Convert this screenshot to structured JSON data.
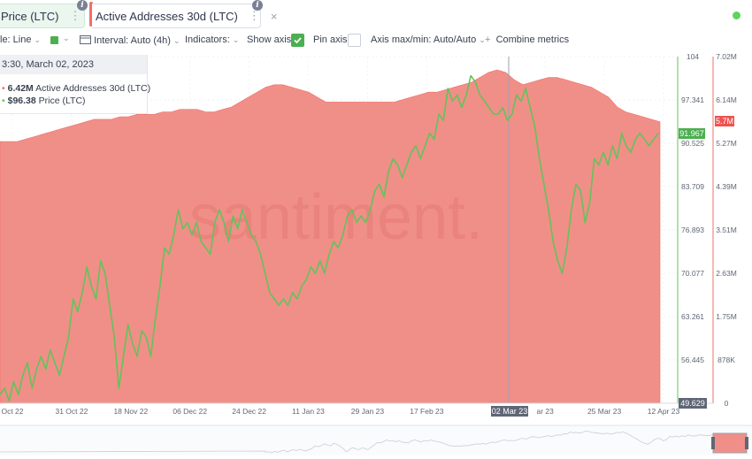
{
  "tabs": [
    {
      "label": "Price (LTC)",
      "active": true,
      "color": "#64c25b",
      "info_glyph": "i"
    },
    {
      "label": "Active Addresses 30d (LTC)",
      "active": false,
      "color": "#ef7066",
      "info_glyph": "i"
    }
  ],
  "tab_actions": {
    "more": "⋮",
    "close": "×"
  },
  "toolbar": {
    "style_label": "le: Line",
    "interval_label": "Interval: Auto (4h)",
    "indicators_label": "Indicators:",
    "show_axis_label": "Show axis",
    "show_axis_checked": true,
    "pin_axis_label": "Pin axis",
    "pin_axis_checked": false,
    "axis_label": "Axis max/min: Auto/Auto",
    "combine_label": "Combine metrics",
    "plus": "+"
  },
  "tooltip": {
    "date": "3:30, March 02, 2023",
    "rows": [
      {
        "value": "6.42M",
        "label": "Active Addresses 30d (LTC)"
      },
      {
        "value": "$96.38",
        "label": "Price (LTC)"
      }
    ]
  },
  "watermark": "santiment.",
  "colors": {
    "price": "#64c25b",
    "addresses": "#f08f88",
    "addresses_line": "#ef7066",
    "accent_check": "#4caf50"
  },
  "chart_data": {
    "type": "line",
    "x_tick_labels": [
      "Oct 22",
      "31 Oct 22",
      "18 Nov 22",
      "06 Dec 22",
      "24 Dec 22",
      "11 Jan 23",
      "29 Jan 23",
      "17 Feb 23",
      "02 Mar 23",
      "ar 23",
      "25 Mar 23",
      "12 Apr 23"
    ],
    "crosshair_label": "02 Mar 23",
    "y_left": {
      "ticks": [
        104,
        97.341,
        90.525,
        83.709,
        76.893,
        70.077,
        63.261,
        56.445,
        49.629
      ],
      "range": [
        49.629,
        104
      ],
      "current": 91.967,
      "min_label": "49.629"
    },
    "y_right": {
      "ticks": [
        "7.02M",
        "6.14M",
        "5.27M",
        "4.39M",
        "3.51M",
        "2.63M",
        "1.75M",
        "878K",
        "0"
      ],
      "range_millions": [
        0,
        7.02
      ],
      "current": "5.7M"
    },
    "series": [
      {
        "name": "Price (LTC)",
        "values": [
          51,
          52,
          50,
          53,
          51,
          54,
          56,
          52,
          55,
          57,
          55,
          58,
          56,
          54,
          57,
          60,
          66,
          64,
          67,
          71,
          68,
          66,
          72,
          70,
          65,
          60,
          52,
          57,
          62,
          59,
          57,
          61,
          60,
          57,
          63,
          68,
          74,
          73,
          76,
          80,
          77,
          78,
          76,
          78,
          75,
          74,
          73,
          78,
          80,
          78,
          75,
          79,
          77,
          80,
          78,
          76,
          75,
          73,
          70,
          67,
          66,
          65,
          66,
          65,
          67,
          66,
          68,
          69,
          71,
          70,
          72,
          70,
          73,
          75,
          74,
          76,
          79,
          80,
          78,
          79,
          78,
          80,
          83,
          84,
          82,
          86,
          88,
          87,
          85,
          87,
          89,
          90,
          88,
          90,
          92,
          91,
          95,
          94,
          99,
          97,
          98,
          96,
          98,
          101,
          100,
          98,
          97,
          96,
          95,
          95,
          96,
          94,
          95,
          98,
          97,
          99,
          96,
          93,
          88,
          84,
          80,
          75,
          72,
          70,
          74,
          80,
          84,
          83,
          78,
          81,
          88,
          87,
          89,
          87,
          90,
          88,
          92,
          90,
          89,
          91,
          92,
          91,
          90,
          91,
          92
        ]
      },
      {
        "name": "Active Addresses 30d (LTC)",
        "values_millions": [
          5.3,
          5.3,
          5.3,
          5.35,
          5.4,
          5.45,
          5.5,
          5.55,
          5.6,
          5.65,
          5.7,
          5.75,
          5.75,
          5.75,
          5.8,
          5.8,
          5.85,
          5.85,
          5.85,
          5.9,
          5.9,
          5.95,
          5.95,
          5.95,
          5.9,
          5.9,
          5.95,
          6.0,
          6.1,
          6.2,
          6.3,
          6.4,
          6.45,
          6.45,
          6.4,
          6.35,
          6.3,
          6.2,
          6.1,
          6.1,
          6.1,
          6.1,
          6.1,
          6.1,
          6.1,
          6.1,
          6.1,
          6.15,
          6.2,
          6.25,
          6.3,
          6.3,
          6.35,
          6.4,
          6.45,
          6.5,
          6.6,
          6.7,
          6.75,
          6.7,
          6.55,
          6.45,
          6.5,
          6.55,
          6.6,
          6.6,
          6.55,
          6.5,
          6.45,
          6.4,
          6.3,
          6.2,
          6.0,
          5.9,
          5.85,
          5.8,
          5.75,
          5.7
        ]
      }
    ]
  }
}
